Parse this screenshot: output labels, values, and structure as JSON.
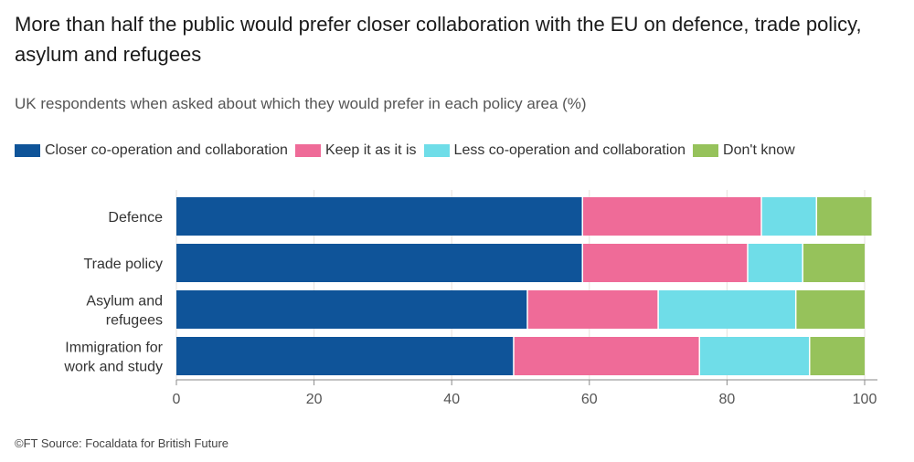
{
  "title": "More than half the public would prefer closer collaboration with the EU on defence, trade policy, asylum and refugees",
  "subtitle": "UK respondents when asked about which they would prefer in each policy area (%)",
  "source": "©FT Source: Focaldata for British Future",
  "chart_data": {
    "type": "bar",
    "orientation": "horizontal",
    "stacked": true,
    "title": "More than half the public would prefer closer collaboration with the EU on defence, trade policy, asylum and refugees",
    "subtitle": "UK respondents when asked about which they would prefer in each policy area (%)",
    "xlim": [
      0,
      100
    ],
    "xticks": [
      0,
      20,
      40,
      60,
      80,
      100
    ],
    "grid": true,
    "legend_position": "top-left",
    "categories": [
      [
        "Defence"
      ],
      [
        "Trade policy"
      ],
      [
        "Asylum and",
        "refugees"
      ],
      [
        "Immigration for",
        "work and study"
      ]
    ],
    "series": [
      {
        "name": "Closer co-operation and collaboration",
        "color": "#0f5499",
        "values": [
          59,
          59,
          51,
          49
        ]
      },
      {
        "name": "Keep it as it is",
        "color": "#ef6b98",
        "values": [
          26,
          24,
          19,
          27
        ]
      },
      {
        "name": "Less co-operation and collaboration",
        "color": "#6fdde8",
        "values": [
          8,
          8,
          20,
          16
        ]
      },
      {
        "name": "Don't know",
        "color": "#96c25b",
        "values": [
          8,
          9,
          10,
          8
        ]
      }
    ]
  }
}
